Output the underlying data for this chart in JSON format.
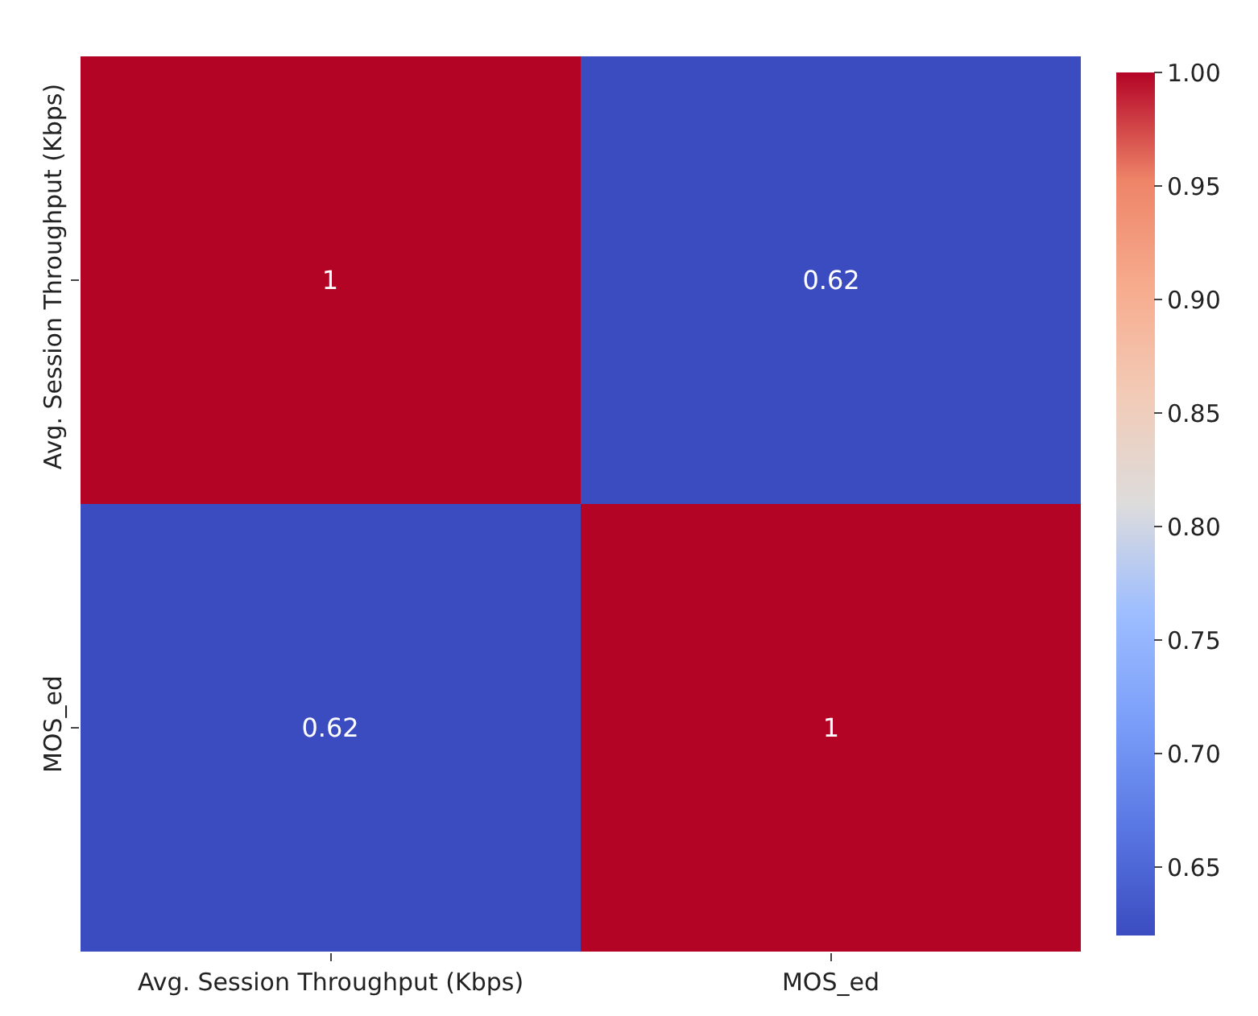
{
  "chart_data": {
    "type": "heatmap",
    "categories": [
      "Avg. Session Throughput (Kbps)",
      "MOS_ed"
    ],
    "y_categories": [
      "Avg. Session Throughput (Kbps)",
      "MOS_ed"
    ],
    "cells": [
      [
        1,
        0.62
      ],
      [
        0.62,
        1
      ]
    ],
    "data_labels": true,
    "clim": [
      0.62,
      1.0
    ],
    "cticks": [
      {
        "value": 0.65,
        "label": "0.65"
      },
      {
        "value": 0.7,
        "label": "0.70"
      },
      {
        "value": 0.75,
        "label": "0.75"
      },
      {
        "value": 0.8,
        "label": "0.80"
      },
      {
        "value": 0.85,
        "label": "0.85"
      },
      {
        "value": 0.9,
        "label": "0.90"
      },
      {
        "value": 0.95,
        "label": "0.95"
      },
      {
        "value": 1.0,
        "label": "1.00"
      }
    ]
  }
}
